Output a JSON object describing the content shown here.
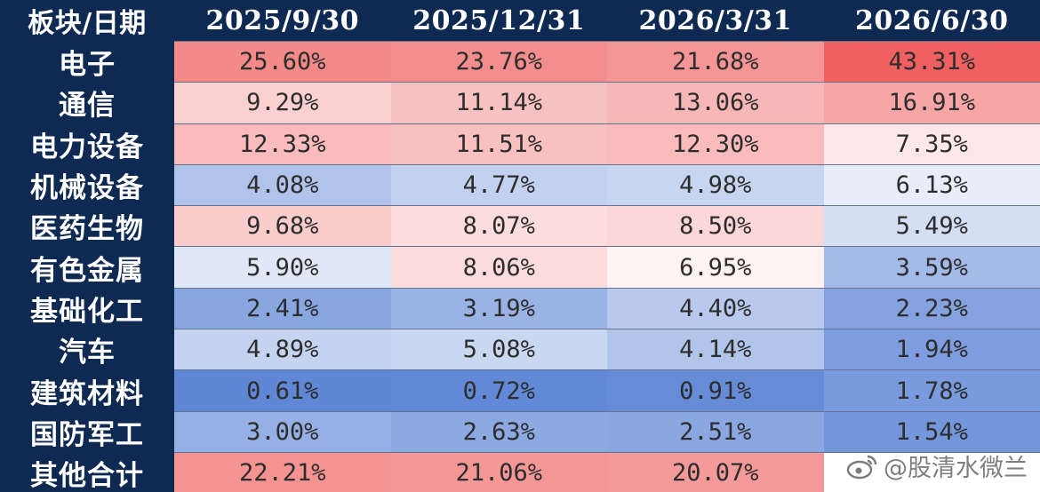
{
  "chart_data": {
    "type": "table",
    "header": {
      "corner": "板块/日期",
      "columns": [
        "2025/9/30",
        "2025/12/31",
        "2026/3/31",
        "2026/6/30"
      ]
    },
    "rows": [
      {
        "sector": "电子",
        "values": [
          "25.60%",
          "23.76%",
          "21.68%",
          "43.31%"
        ],
        "numeric": [
          25.6,
          23.76,
          21.68,
          43.31
        ]
      },
      {
        "sector": "通信",
        "values": [
          "9.29%",
          "11.14%",
          "13.06%",
          "16.91%"
        ],
        "numeric": [
          9.29,
          11.14,
          13.06,
          16.91
        ]
      },
      {
        "sector": "电力设备",
        "values": [
          "12.33%",
          "11.51%",
          "12.30%",
          "7.35%"
        ],
        "numeric": [
          12.33,
          11.51,
          12.3,
          7.35
        ]
      },
      {
        "sector": "机械设备",
        "values": [
          "4.08%",
          "4.77%",
          "4.98%",
          "6.13%"
        ],
        "numeric": [
          4.08,
          4.77,
          4.98,
          6.13
        ]
      },
      {
        "sector": "医药生物",
        "values": [
          "9.68%",
          "8.07%",
          "8.50%",
          "5.49%"
        ],
        "numeric": [
          9.68,
          8.07,
          8.5,
          5.49
        ]
      },
      {
        "sector": "有色金属",
        "values": [
          "5.90%",
          "8.06%",
          "6.95%",
          "3.59%"
        ],
        "numeric": [
          5.9,
          8.06,
          6.95,
          3.59
        ]
      },
      {
        "sector": "基础化工",
        "values": [
          "2.41%",
          "3.19%",
          "4.40%",
          "2.23%"
        ],
        "numeric": [
          2.41,
          3.19,
          4.4,
          2.23
        ]
      },
      {
        "sector": "汽车",
        "values": [
          "4.89%",
          "5.08%",
          "4.14%",
          "1.94%"
        ],
        "numeric": [
          4.89,
          5.08,
          4.14,
          1.94
        ]
      },
      {
        "sector": "建筑材料",
        "values": [
          "0.61%",
          "0.72%",
          "0.91%",
          "1.78%"
        ],
        "numeric": [
          0.61,
          0.72,
          0.91,
          1.78
        ]
      },
      {
        "sector": "国防军工",
        "values": [
          "3.00%",
          "2.63%",
          "2.51%",
          "1.54%"
        ],
        "numeric": [
          3.0,
          2.63,
          2.51,
          1.54
        ]
      },
      {
        "sector": "其他合计",
        "values": [
          "22.21%",
          "21.06%",
          "20.07%",
          ""
        ],
        "numeric": [
          22.21,
          21.06,
          20.07,
          null
        ]
      }
    ],
    "heatmap": {
      "low_color": "#5f87d6",
      "mid_color": "#ffffff",
      "high_color": "#f06060",
      "low_value": 0.6,
      "mid_value": 6.8,
      "high_value": 43.3
    }
  },
  "colors": {
    "header_bg": "#0f2a52",
    "header_text": "#ffffff",
    "cell_text": "#2d2d2d"
  },
  "watermark": {
    "icon": "weibo-logo-icon",
    "text": "@股清水微兰"
  }
}
